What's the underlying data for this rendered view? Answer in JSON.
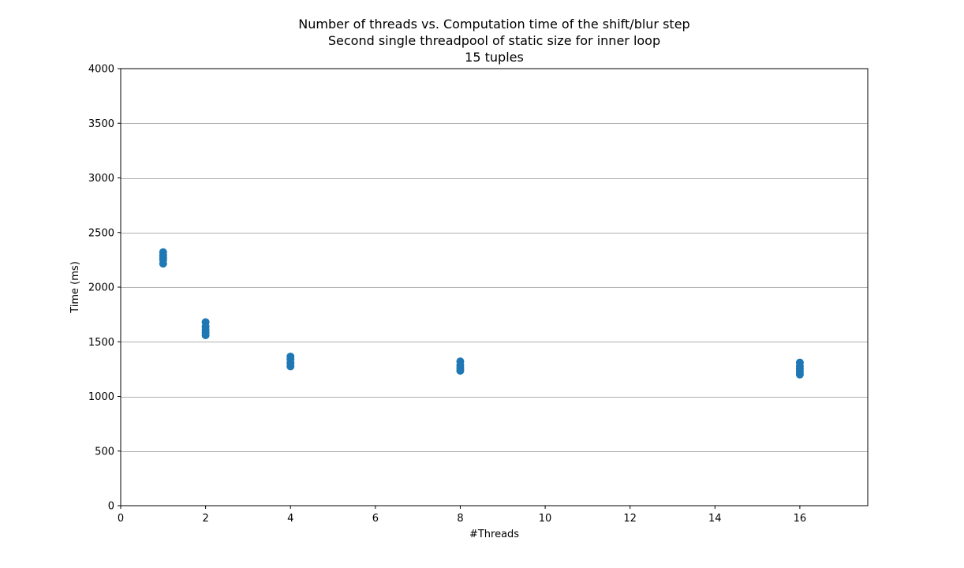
{
  "chart_data": {
    "type": "scatter",
    "title": [
      "Number of threads vs. Computation time of the shift/blur step",
      "Second single threadpool of static size for inner loop",
      "15 tuples"
    ],
    "xlabel": "#Threads",
    "ylabel": "Time (ms)",
    "xlim": [
      0,
      17.6
    ],
    "ylim": [
      0,
      4000
    ],
    "x_ticks": [
      0,
      2,
      4,
      6,
      8,
      10,
      12,
      14,
      16
    ],
    "y_ticks": [
      0,
      500,
      1000,
      1500,
      2000,
      2500,
      3000,
      3500,
      4000
    ],
    "grid": "y-major",
    "legend": "none",
    "series": [
      {
        "color": "#1f77b4",
        "points": [
          {
            "x": 1,
            "y": 2320
          },
          {
            "x": 1,
            "y": 2290
          },
          {
            "x": 1,
            "y": 2270
          },
          {
            "x": 1,
            "y": 2250
          },
          {
            "x": 1,
            "y": 2215
          },
          {
            "x": 2,
            "y": 1680
          },
          {
            "x": 2,
            "y": 1640
          },
          {
            "x": 2,
            "y": 1610
          },
          {
            "x": 2,
            "y": 1585
          },
          {
            "x": 2,
            "y": 1560
          },
          {
            "x": 4,
            "y": 1365
          },
          {
            "x": 4,
            "y": 1340
          },
          {
            "x": 4,
            "y": 1305
          },
          {
            "x": 4,
            "y": 1275
          },
          {
            "x": 8,
            "y": 1320
          },
          {
            "x": 8,
            "y": 1285
          },
          {
            "x": 8,
            "y": 1260
          },
          {
            "x": 8,
            "y": 1235
          },
          {
            "x": 16,
            "y": 1310
          },
          {
            "x": 16,
            "y": 1275
          },
          {
            "x": 16,
            "y": 1250
          },
          {
            "x": 16,
            "y": 1225
          },
          {
            "x": 16,
            "y": 1200
          }
        ]
      }
    ]
  }
}
